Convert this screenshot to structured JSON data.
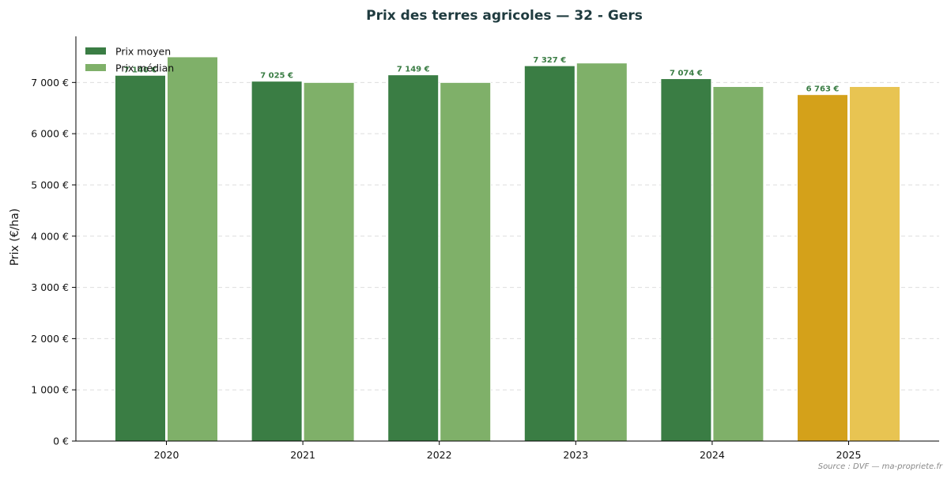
{
  "colors": {
    "moyen": "#3a7d44",
    "median": "#7fb069",
    "moyen_highlight": "#d4a11a",
    "median_highlight": "#e8c452",
    "title": "#1f3b3f",
    "grid": "#dddddd"
  },
  "chart_data": {
    "type": "bar",
    "title": "Prix des terres agricoles — 32 - Gers",
    "xlabel": "",
    "ylabel": "Prix (€/ha)",
    "ylim": [
      0,
      7900
    ],
    "yticks": [
      0,
      1000,
      2000,
      3000,
      4000,
      5000,
      6000,
      7000
    ],
    "ytick_labels": [
      "0 €",
      "1 000 €",
      "2 000 €",
      "3 000 €",
      "4 000 €",
      "5 000 €",
      "6 000 €",
      "7 000 €"
    ],
    "categories": [
      "2020",
      "2021",
      "2022",
      "2023",
      "2024",
      "2025"
    ],
    "highlight_category": "2025",
    "series": [
      {
        "name": "Prix moyen",
        "values": [
          7140,
          7025,
          7149,
          7327,
          7074,
          6763
        ],
        "labels": [
          "7 140 €",
          "7 025 €",
          "7 149 €",
          "7 327 €",
          "7 074 €",
          "6 763 €"
        ]
      },
      {
        "name": "Prix médian",
        "values": [
          7500,
          7000,
          7000,
          7380,
          6920,
          6920
        ]
      }
    ],
    "grid": true,
    "grid_axis": "y",
    "legend_position": "top-left"
  },
  "source_text": "Source : DVF — ma-propriete.fr"
}
